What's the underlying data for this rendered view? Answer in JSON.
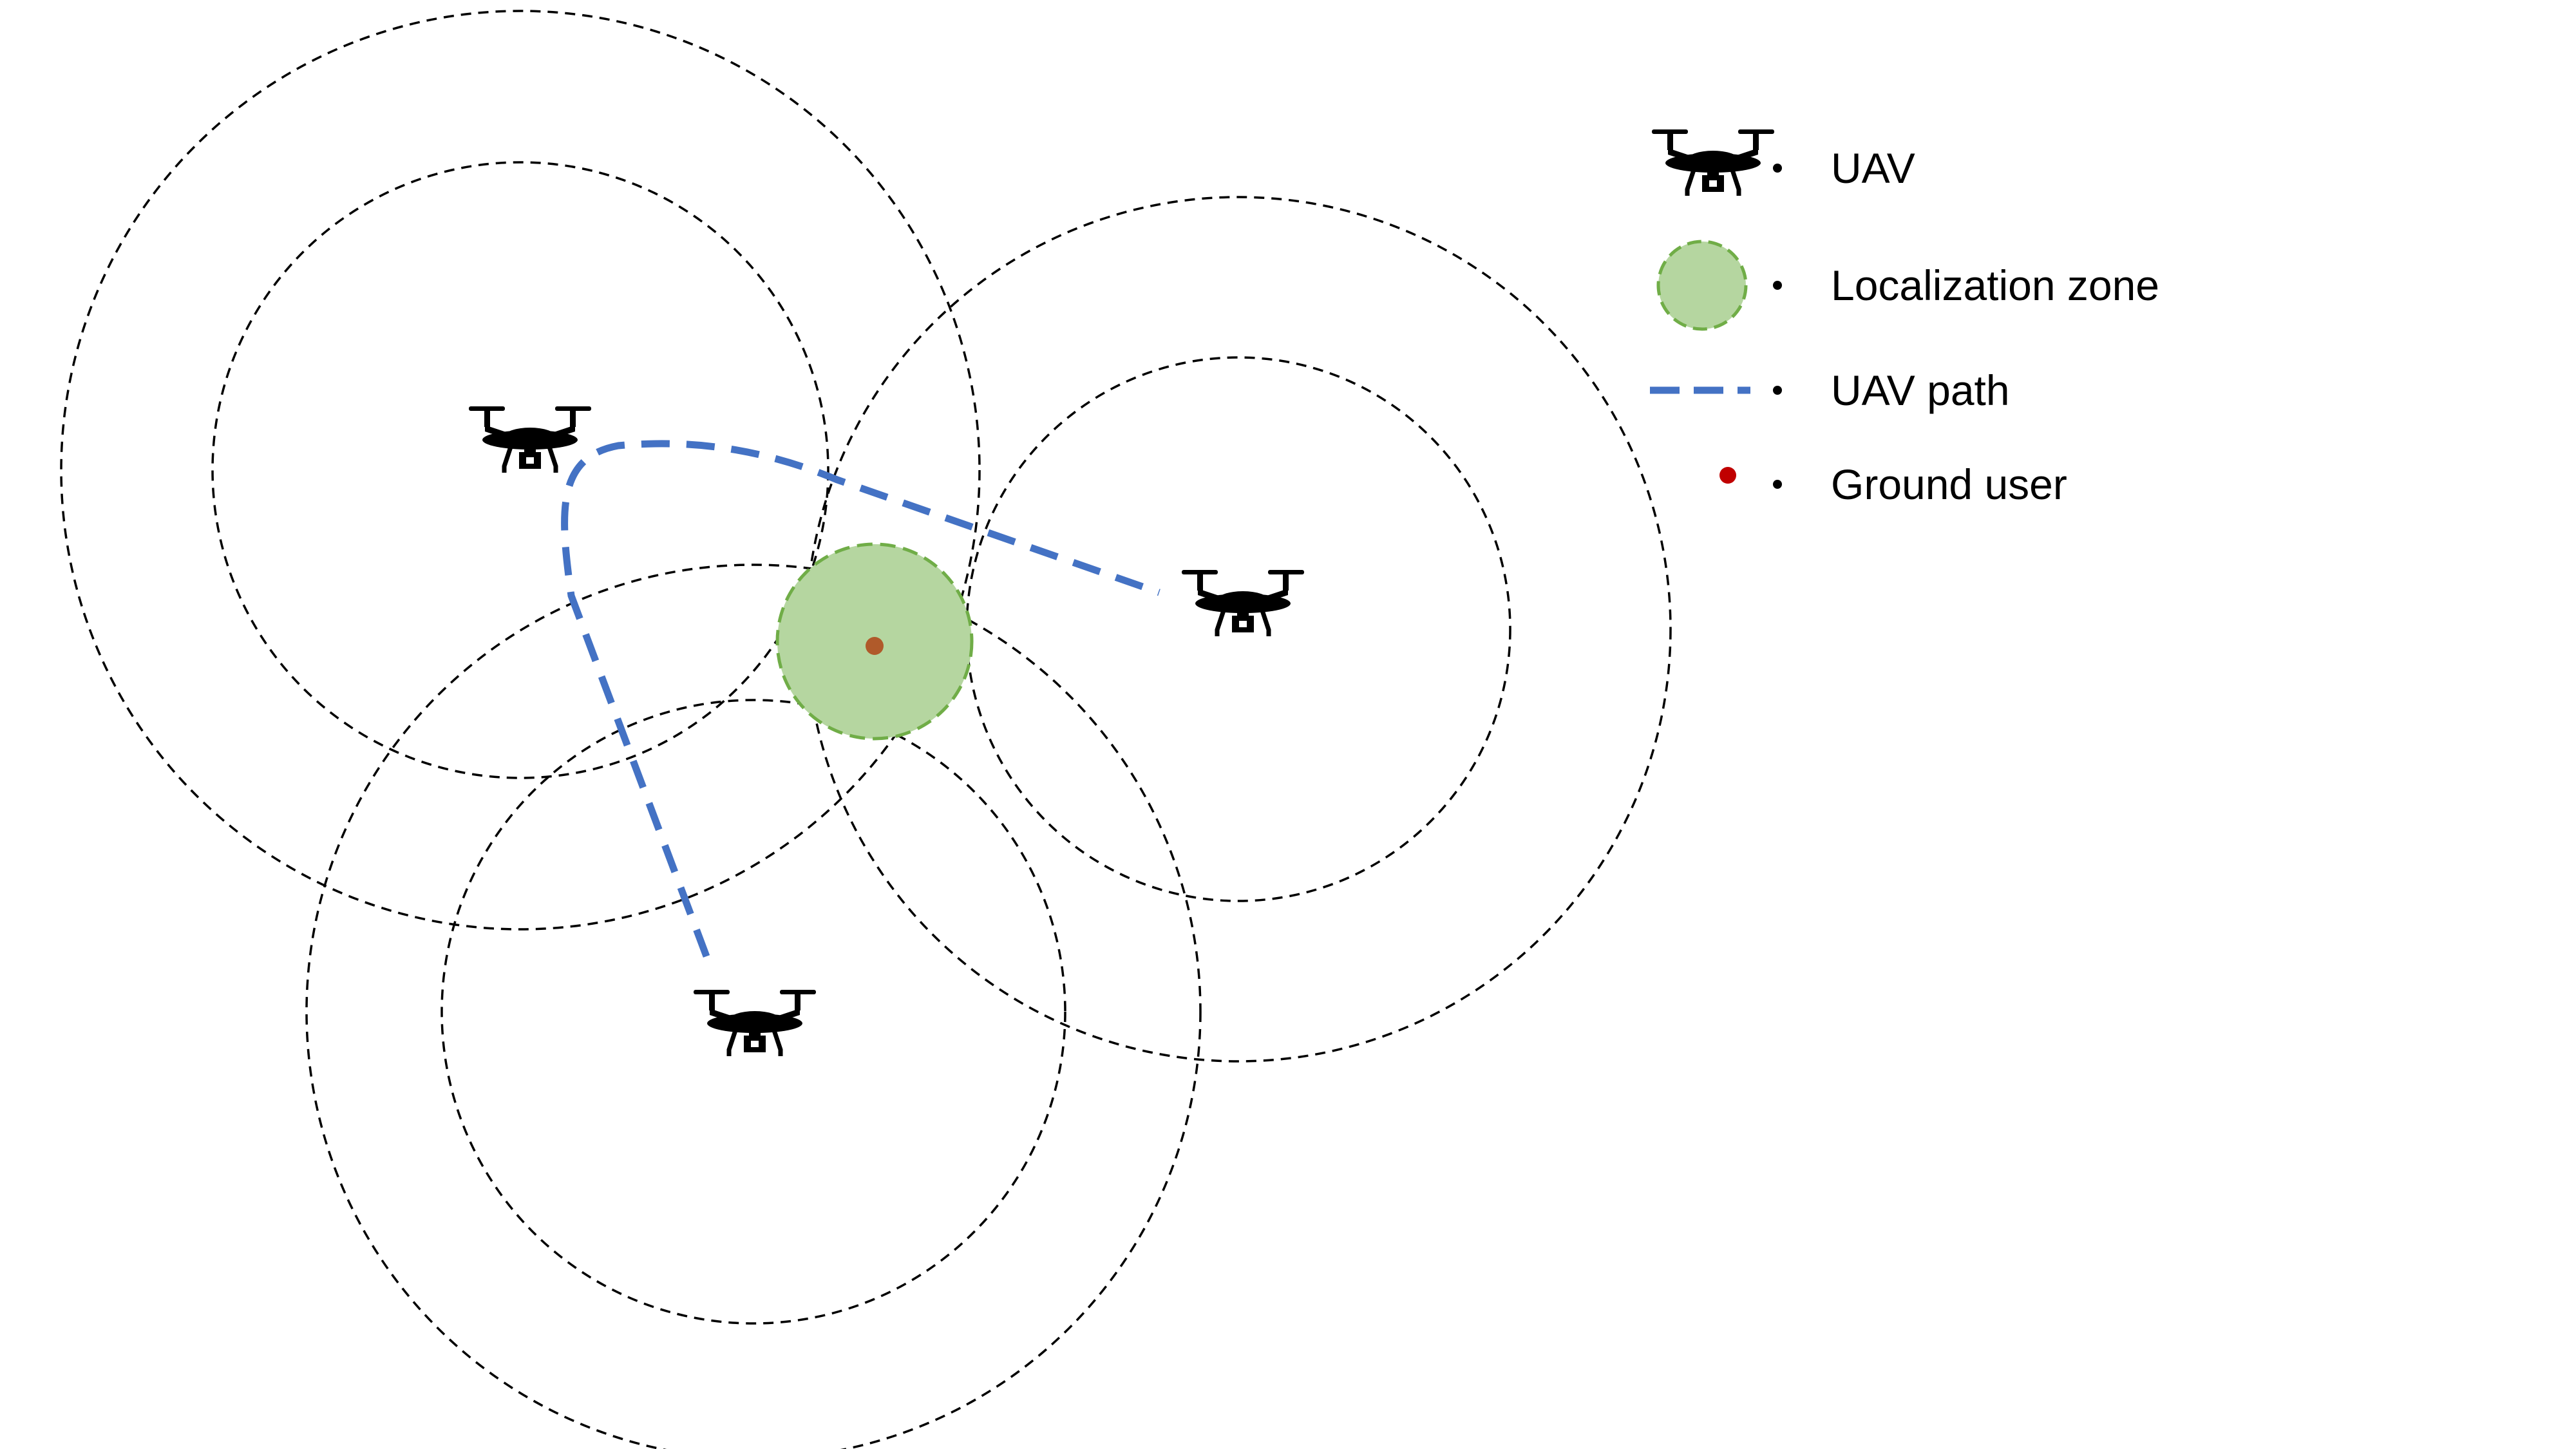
{
  "colors": {
    "background": "#ffffff",
    "range_ring": "#000000",
    "uav": "#000000",
    "path": "#4472c4",
    "zone_fill": "#b5d6a0",
    "zone_stroke": "#70ad47",
    "ground_user": "#c00000"
  },
  "diagram": {
    "uavs": [
      {
        "name": "uav-1",
        "icon": "drone-icon"
      },
      {
        "name": "uav-2",
        "icon": "drone-icon"
      },
      {
        "name": "uav-3",
        "icon": "drone-icon"
      }
    ],
    "localization_zone": {
      "icon": "localization-zone-circle"
    },
    "ground_user": {
      "icon": "ground-user-dot"
    }
  },
  "legend": {
    "items": [
      {
        "symbol": "drone-icon",
        "label": "UAV"
      },
      {
        "symbol": "localization-zone-icon",
        "label": "Localization zone"
      },
      {
        "symbol": "dashed-path-icon",
        "label": "UAV path"
      },
      {
        "symbol": "ground-user-dot-icon",
        "label": "Ground user"
      }
    ]
  }
}
